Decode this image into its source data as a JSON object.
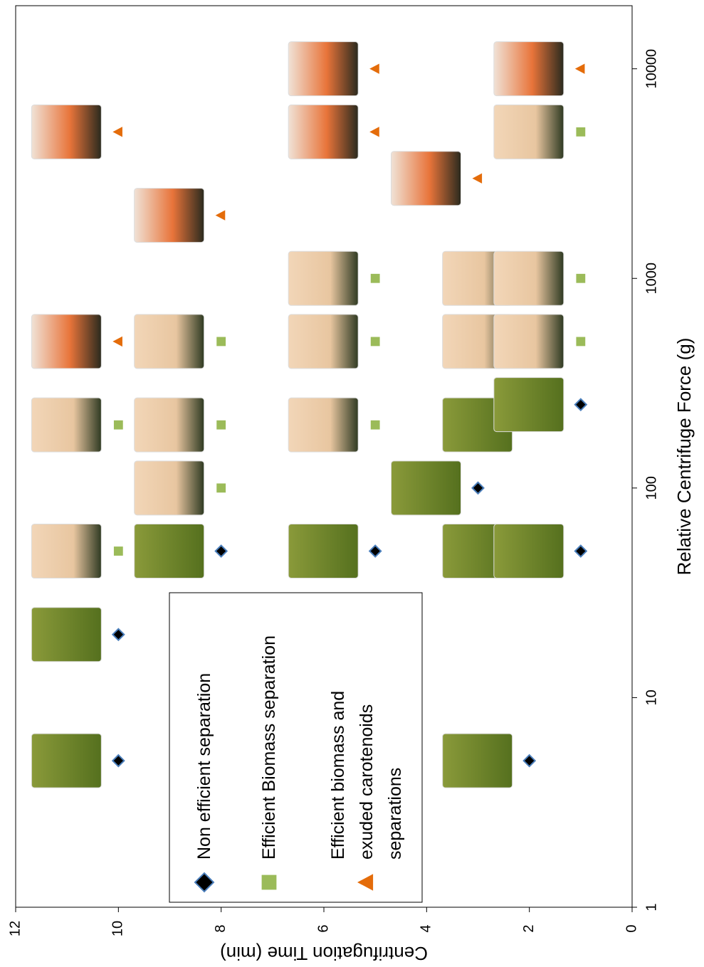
{
  "chart_data": {
    "type": "scatter",
    "x_label": "Relative Centrifuge Force (g)",
    "y_label": "Centrifugation Time (min)",
    "xscale": "log",
    "xlim": [
      1,
      20000
    ],
    "xticks": [
      1,
      10,
      100,
      1000,
      10000
    ],
    "ylim": [
      0,
      12
    ],
    "yticks": [
      0,
      2,
      4,
      6,
      8,
      10,
      12
    ],
    "legend": "lower left",
    "series": [
      {
        "name": "Non efficient separation",
        "color": "#000000",
        "edge": "#4a7ebb",
        "marker": "diamond",
        "x": [
          5,
          20,
          50,
          50,
          50,
          50,
          100,
          200,
          250,
          5
        ],
        "values": [
          10,
          10,
          8,
          5,
          2,
          1,
          3,
          2,
          1,
          2
        ]
      },
      {
        "name": "Efficient Biomass separation",
        "color": "#9bbb59",
        "marker": "square",
        "x": [
          50,
          100,
          200,
          200,
          200,
          500,
          500,
          500,
          500,
          1000,
          1000,
          1000,
          5000
        ],
        "values": [
          10,
          8,
          10,
          8,
          5,
          8,
          5,
          2,
          1,
          5,
          2,
          1,
          1
        ]
      },
      {
        "name": "Efficient biomass and exuded carotenoids separations",
        "color": "#e46c0a",
        "marker": "triangle",
        "x": [
          500,
          2000,
          5000,
          5000,
          3000,
          10000,
          10000
        ],
        "values": [
          10,
          8,
          10,
          5,
          3,
          5,
          1
        ]
      }
    ]
  }
}
